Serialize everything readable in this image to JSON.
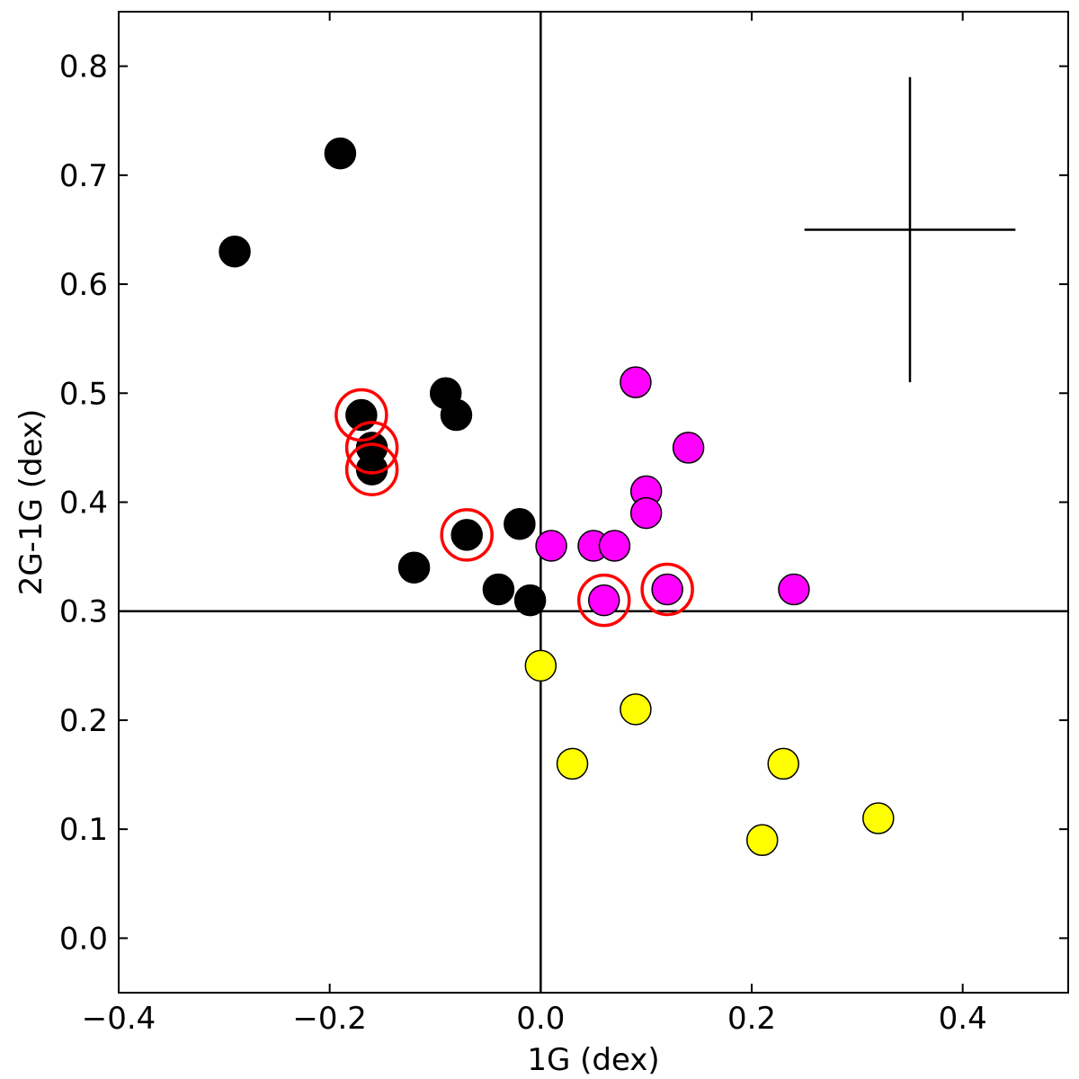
{
  "chart_data": {
    "type": "scatter",
    "xlabel": "1G (dex)",
    "ylabel": "2G-1G (dex)",
    "xlim": [
      -0.4,
      0.5
    ],
    "ylim": [
      -0.05,
      0.85
    ],
    "x_ticks": [
      -0.4,
      -0.2,
      0.0,
      0.2,
      0.4
    ],
    "x_tick_labels": [
      "−0.4",
      "−0.2",
      "0.0",
      "0.2",
      "0.4"
    ],
    "y_ticks": [
      0.0,
      0.1,
      0.2,
      0.3,
      0.4,
      0.5,
      0.6,
      0.7,
      0.8
    ],
    "y_tick_labels": [
      "0.0",
      "0.1",
      "0.2",
      "0.3",
      "0.4",
      "0.5",
      "0.6",
      "0.7",
      "0.8"
    ],
    "grid": false,
    "reference_lines": {
      "vertical_x": 0.0,
      "horizontal_y": 0.3
    },
    "error_bar": {
      "x": 0.35,
      "y": 0.65,
      "x_err": 0.1,
      "y_err": 0.14
    },
    "series": [
      {
        "color": "#000000",
        "points": [
          [
            -0.29,
            0.63
          ],
          [
            -0.19,
            0.72
          ],
          [
            -0.09,
            0.5
          ],
          [
            -0.08,
            0.48
          ],
          [
            -0.17,
            0.48
          ],
          [
            -0.16,
            0.45
          ],
          [
            -0.16,
            0.43
          ],
          [
            -0.12,
            0.34
          ],
          [
            -0.07,
            0.37
          ],
          [
            -0.04,
            0.32
          ],
          [
            -0.02,
            0.38
          ],
          [
            -0.01,
            0.31
          ]
        ]
      },
      {
        "color": "#ff00ff",
        "points": [
          [
            0.09,
            0.51
          ],
          [
            0.14,
            0.45
          ],
          [
            0.1,
            0.41
          ],
          [
            0.1,
            0.39
          ],
          [
            0.01,
            0.36
          ],
          [
            0.05,
            0.36
          ],
          [
            0.07,
            0.36
          ],
          [
            0.06,
            0.31
          ],
          [
            0.12,
            0.32
          ],
          [
            0.24,
            0.32
          ]
        ]
      },
      {
        "color": "#ffff00",
        "points": [
          [
            0.0,
            0.25
          ],
          [
            0.09,
            0.21
          ],
          [
            0.03,
            0.16
          ],
          [
            0.23,
            0.16
          ],
          [
            0.32,
            0.11
          ],
          [
            0.21,
            0.09
          ]
        ]
      }
    ],
    "highlighted": {
      "color": "#ff0000",
      "points": [
        [
          -0.17,
          0.48
        ],
        [
          -0.16,
          0.45
        ],
        [
          -0.16,
          0.43
        ],
        [
          -0.07,
          0.37
        ],
        [
          0.06,
          0.31
        ],
        [
          0.12,
          0.32
        ]
      ]
    }
  }
}
